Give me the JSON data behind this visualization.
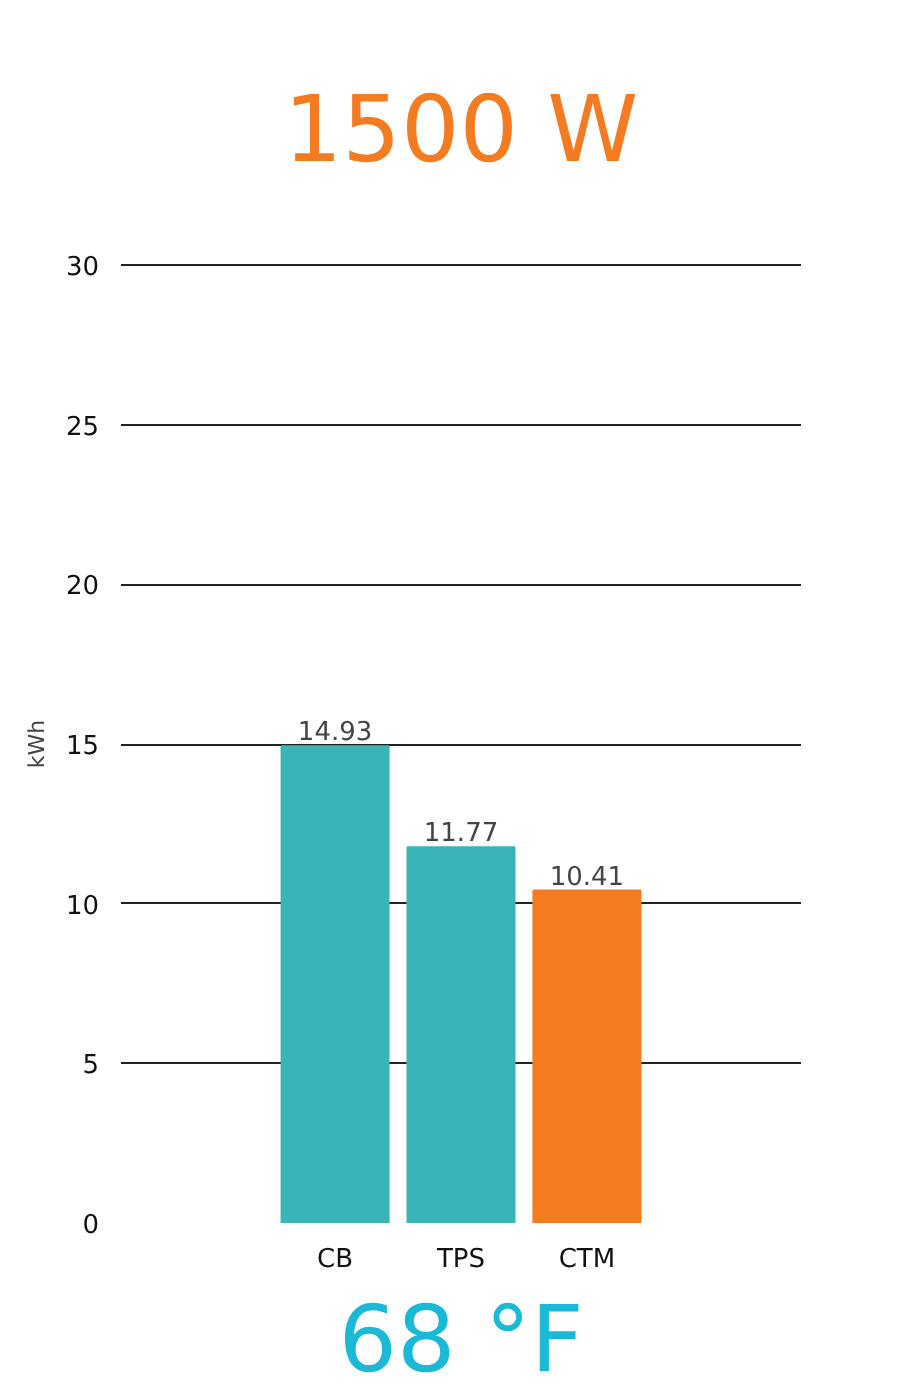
{
  "chart_data": {
    "type": "bar",
    "title": "1500 W",
    "ylabel": "kWh",
    "annotations": [
      "68 °F"
    ],
    "categories": [
      "CB",
      "TPS",
      "CTM"
    ],
    "values": [
      14.93,
      11.77,
      10.41
    ],
    "colors": [
      "#3bb4b7",
      "#3bb4b7",
      "#f47b20"
    ],
    "ylim": [
      0,
      30
    ],
    "yticks": [
      0,
      5,
      10,
      15,
      20,
      25,
      30
    ],
    "grid": "y",
    "data_labels": true
  }
}
